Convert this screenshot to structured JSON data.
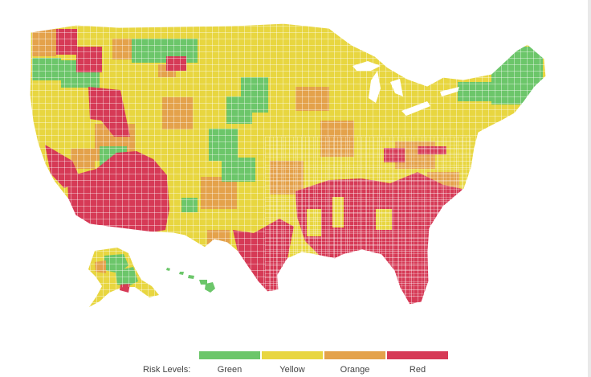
{
  "legend": {
    "title": "Risk Levels:",
    "items": [
      {
        "label": "Green",
        "color": "#6cc66a"
      },
      {
        "label": "Yellow",
        "color": "#e8d640"
      },
      {
        "label": "Orange",
        "color": "#e4a24b"
      },
      {
        "label": "Red",
        "color": "#d63a56"
      }
    ]
  },
  "map": {
    "region_names": [
      "contiguous-us",
      "alaska",
      "hawaii"
    ],
    "background_color": "#ffffff",
    "border_color": "#ffffff"
  }
}
